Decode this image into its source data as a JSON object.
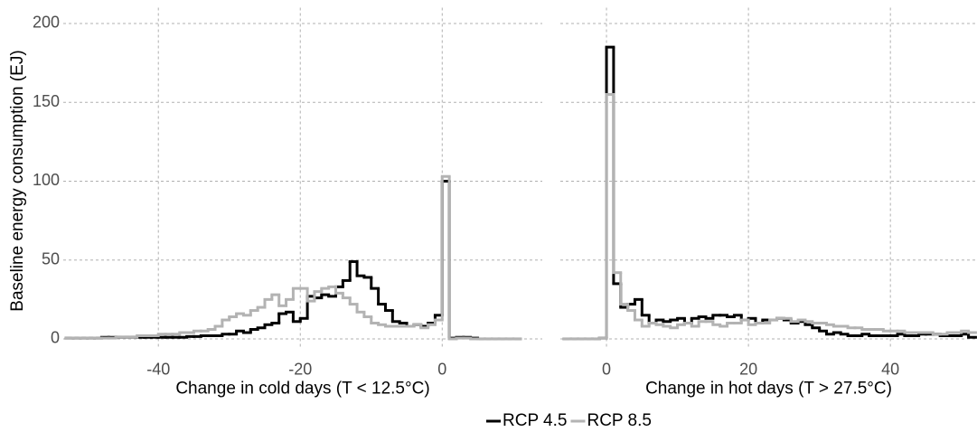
{
  "chart_data": [
    {
      "type": "step-histogram",
      "x_label": "Change in cold days (T < 12.5°C)",
      "y_label": "Baseline energy consumption (EJ)",
      "xlim": [
        -53.4,
        14.1
      ],
      "xticks": [
        -40,
        -20,
        0
      ],
      "ylim": [
        -5,
        210
      ],
      "yticks": [
        0,
        50,
        100,
        150,
        200
      ],
      "grid": true,
      "bins": [
        -53,
        -52,
        -51,
        -50,
        -49,
        -48,
        -47,
        -46,
        -45,
        -44,
        -43,
        -42,
        -41,
        -40,
        -39,
        -38,
        -37,
        -36,
        -35,
        -34,
        -33,
        -32,
        -31,
        -30,
        -29,
        -28,
        -27,
        -26,
        -25,
        -24,
        -23,
        -22,
        -21,
        -20,
        -19,
        -18,
        -17,
        -16,
        -15,
        -14,
        -13,
        -12,
        -11,
        -10,
        -9,
        -8,
        -7,
        -6,
        -5,
        -4,
        -3,
        -2,
        -1,
        0,
        1,
        2,
        3,
        4,
        5,
        6,
        7,
        8,
        9,
        10,
        11
      ],
      "series": [
        {
          "name": "RCP 4.5",
          "color": "#000000",
          "values": [
            0.5,
            0.5,
            0.5,
            0.5,
            0.5,
            1,
            1,
            1,
            1,
            1,
            1,
            1,
            1,
            1,
            1,
            1,
            1,
            1.5,
            1.5,
            2,
            2,
            2,
            3,
            3,
            5,
            4,
            6,
            7,
            9,
            10,
            16,
            17,
            11,
            13,
            27,
            26,
            28,
            27,
            33,
            37,
            49,
            40,
            39,
            32,
            22,
            18,
            11,
            10,
            8,
            9,
            8,
            10,
            15,
            100,
            0.5,
            1,
            1,
            0.5,
            0,
            0,
            0,
            0,
            0,
            0
          ]
        },
        {
          "name": "RCP 8.5",
          "color": "#b3b3b3",
          "values": [
            0.5,
            0.5,
            0.5,
            0.5,
            0.5,
            0.5,
            0.5,
            1,
            1,
            1,
            2,
            2,
            2,
            3,
            3,
            3,
            4,
            4,
            5,
            5,
            6,
            8,
            12,
            14,
            16,
            15,
            18,
            20,
            25,
            28,
            21,
            25,
            32,
            32,
            24,
            30,
            32,
            33,
            29,
            26,
            22,
            17,
            14,
            10,
            9,
            8,
            8,
            8,
            8,
            9,
            7,
            9,
            12,
            103,
            0,
            0.5,
            0.5,
            0,
            0,
            0,
            0,
            0,
            0,
            0
          ]
        }
      ]
    },
    {
      "type": "step-histogram",
      "x_label": "Change in hot days (T > 27.5°C)",
      "xlim": [
        -6.5,
        52.2
      ],
      "xticks": [
        0,
        20,
        40
      ],
      "ylim": [
        -5,
        210
      ],
      "yticks": [
        0,
        50,
        100,
        150,
        200
      ],
      "grid": true,
      "bins": [
        -6,
        -5,
        -4,
        -3,
        -2,
        -1,
        0,
        1,
        2,
        3,
        4,
        5,
        6,
        7,
        8,
        9,
        10,
        11,
        12,
        13,
        14,
        15,
        16,
        17,
        18,
        19,
        20,
        21,
        22,
        23,
        24,
        25,
        26,
        27,
        28,
        29,
        30,
        31,
        32,
        33,
        34,
        35,
        36,
        37,
        38,
        39,
        40,
        41,
        42,
        43,
        44,
        45,
        46,
        47,
        48,
        49,
        50,
        51,
        52
      ],
      "series": [
        {
          "color": "#000000",
          "values": [
            0,
            0,
            0,
            0,
            0,
            0.5,
            185,
            35,
            20,
            22,
            25,
            15,
            10,
            12,
            11,
            12,
            13,
            10,
            13,
            14,
            13,
            15,
            15,
            14,
            15,
            12,
            13,
            10,
            12,
            12,
            13,
            12,
            10,
            11,
            9,
            7,
            5,
            3,
            4,
            3,
            2,
            2,
            3,
            2,
            2,
            2,
            2,
            3,
            2,
            2,
            3,
            3,
            3,
            2,
            2,
            2,
            3,
            1
          ]
        },
        {
          "color": "#b3b3b3",
          "values": [
            0,
            0,
            0,
            0,
            0,
            0.5,
            155,
            42,
            22,
            18,
            12,
            8,
            10,
            9,
            8,
            7,
            9,
            10,
            8,
            11,
            11,
            9,
            8,
            10,
            10,
            12,
            9,
            10,
            10,
            12,
            13,
            13,
            11,
            12,
            11,
            10,
            10,
            9,
            8,
            8,
            7,
            7,
            6,
            6,
            6,
            5,
            5,
            5,
            4,
            4,
            4,
            4,
            3,
            3,
            4,
            4,
            5,
            4
          ]
        }
      ]
    }
  ]
}
